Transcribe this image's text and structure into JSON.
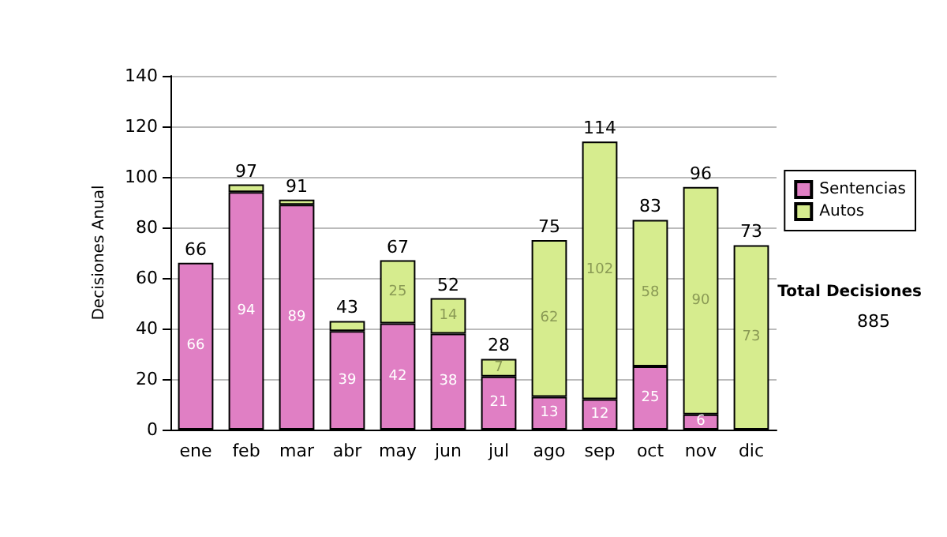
{
  "chart_data": {
    "type": "bar",
    "stacked": true,
    "ylabel": "Decisiones Anual",
    "categories": [
      "ene",
      "feb",
      "mar",
      "abr",
      "may",
      "jun",
      "jul",
      "ago",
      "sep",
      "oct",
      "nov",
      "dic"
    ],
    "series": [
      {
        "name": "Sentencias",
        "color": "#e07fc4",
        "values": [
          66,
          94,
          89,
          39,
          42,
          38,
          21,
          13,
          12,
          25,
          6,
          0
        ],
        "value_labels": [
          "66",
          "94",
          "89",
          "39",
          "42",
          "38",
          "21",
          "13",
          "12",
          "25",
          "6",
          null
        ]
      },
      {
        "name": "Autos",
        "color": "#d6ec8e",
        "values": [
          0,
          3,
          2,
          4,
          25,
          14,
          7,
          62,
          102,
          58,
          90,
          73
        ],
        "value_labels": [
          null,
          null,
          null,
          null,
          "25",
          "14",
          "7",
          "62",
          "102",
          "58",
          "90",
          "73"
        ]
      }
    ],
    "totals": [
      "66",
      "97",
      "91",
      "43",
      "67",
      "52",
      "28",
      "75",
      "114",
      "83",
      "96",
      "73"
    ],
    "ylim": [
      0,
      140
    ],
    "yticks": [
      0,
      20,
      40,
      60,
      80,
      100,
      120,
      140
    ],
    "grid": "y",
    "legend": "right",
    "annotations": [
      "Total Decisiones",
      "885"
    ]
  }
}
